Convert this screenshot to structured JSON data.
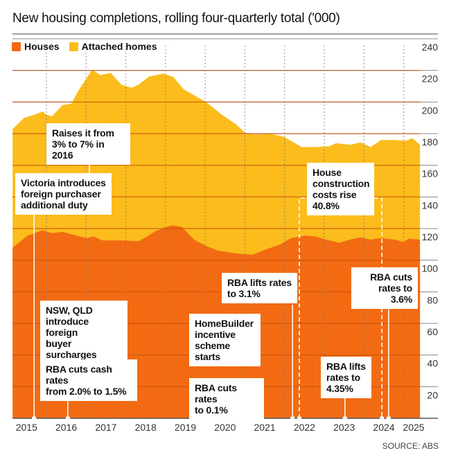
{
  "chart_data": {
    "type": "area",
    "stacked": true,
    "title": "New housing completions, rolling four-quarterly total ('000)",
    "xlabel": "",
    "ylabel": "",
    "ylim": [
      0,
      240
    ],
    "yticks": [
      20,
      40,
      60,
      80,
      100,
      120,
      140,
      160,
      180,
      200,
      220,
      240
    ],
    "xlim": [
      2014.65,
      2025.25
    ],
    "xtick_labels": [
      "2015",
      "2016",
      "2017",
      "2018",
      "2019",
      "2020",
      "2021",
      "2022",
      "2023",
      "2024",
      "2025"
    ],
    "grid": true,
    "legend_position": "top-left",
    "series": [
      {
        "name": "Houses",
        "color": "#F26B13",
        "x": [
          2014.65,
          2015.03,
          2015.41,
          2015.64,
          2015.9,
          2016.25,
          2016.51,
          2016.69,
          2016.91,
          2017.39,
          2017.82,
          2018.0,
          2018.26,
          2018.66,
          2018.91,
          2019.22,
          2019.52,
          2019.83,
          2020.35,
          2020.7,
          2021.05,
          2021.4,
          2021.66,
          2022.01,
          2022.28,
          2022.54,
          2022.88,
          2023.15,
          2023.41,
          2023.67,
          2023.93,
          2024.28,
          2024.49,
          2024.63,
          2024.91
        ],
        "values": [
          108,
          115.5,
          119,
          117,
          118,
          115.5,
          114,
          115,
          112.5,
          112.5,
          112,
          114.5,
          118.5,
          122,
          121,
          113,
          109,
          106,
          104,
          103.5,
          107,
          110,
          114,
          115.5,
          115,
          113,
          111,
          113,
          114.5,
          113,
          114,
          113,
          111.5,
          113.5,
          113
        ]
      },
      {
        "name": "Attached homes",
        "color": "#FBBC1C",
        "total_x": [
          2014.65,
          2014.94,
          2015.2,
          2015.41,
          2015.5,
          2015.64,
          2015.9,
          2016.13,
          2016.3,
          2016.51,
          2016.65,
          2016.86,
          2017.12,
          2017.39,
          2017.65,
          2017.82,
          2018.08,
          2018.43,
          2018.69,
          2018.96,
          2019.31,
          2019.52,
          2019.92,
          2020.27,
          2020.53,
          2020.79,
          2021.14,
          2021.49,
          2021.93,
          2022.28,
          2022.63,
          2022.8,
          2023.15,
          2023.41,
          2023.67,
          2023.93,
          2024.28,
          2024.55,
          2024.72,
          2024.91
        ],
        "total_values": [
          183,
          190,
          192,
          194,
          192,
          191,
          198,
          199,
          207,
          215,
          220.5,
          217,
          218.4,
          211,
          209,
          211,
          216,
          218,
          216,
          208,
          203,
          200,
          192,
          186,
          180,
          179.5,
          180,
          178,
          171.5,
          171.5,
          172,
          174,
          173,
          174.5,
          171.5,
          176,
          176,
          175.5,
          177,
          173
        ]
      }
    ],
    "annotations": [
      {
        "id": "victoria",
        "lines": [
          [
            "Victoria introduces"
          ],
          [
            "foreign purchaser"
          ],
          [
            "additional duty"
          ]
        ],
        "x": 2015.19
      },
      {
        "id": "raises",
        "lines": [
          [
            "Raises it from"
          ],
          [
            "3% to 7% in 2016"
          ]
        ]
      },
      {
        "id": "nswqld",
        "lines": [
          [
            "NSW, QLD"
          ],
          [
            "introduce foreign"
          ],
          [
            "buyer surcharges"
          ]
        ]
      },
      {
        "id": "rba15",
        "lines": [
          [
            "RBA cuts cash rates"
          ],
          [
            "from ",
            "2.0% to 1.5%"
          ]
        ],
        "x": 2016.04
      },
      {
        "id": "homebuilder",
        "lines": [
          [
            "HomeBuilder"
          ],
          [
            "incentive"
          ],
          [
            "scheme starts"
          ]
        ]
      },
      {
        "id": "rba01",
        "lines": [
          [
            "RBA cuts rates"
          ],
          [
            "to 0.1%"
          ]
        ],
        "x": 2020.04
      },
      {
        "id": "rba31",
        "lines": [
          [
            "RBA lifts rates"
          ],
          [
            "to 3.1%"
          ]
        ],
        "x": 2021.7
      },
      {
        "id": "construction",
        "lines": [
          [
            "House"
          ],
          [
            "construction"
          ],
          [
            "costs ",
            "rise"
          ],
          [
            "40.8%"
          ]
        ],
        "x_start": 2021.87,
        "x_end": 2023.95
      },
      {
        "id": "rba435",
        "lines": [
          [
            "RBA lifts"
          ],
          [
            "rates to"
          ],
          [
            "4.35%"
          ]
        ],
        "x": 2023.02
      },
      {
        "id": "rba36",
        "lines": [
          [
            "RBA cuts"
          ],
          [
            "rates to 3.6%"
          ]
        ],
        "x": 2024.12
      }
    ]
  },
  "title": "New housing completions, rolling four-quarterly total ('000)",
  "legend": {
    "houses": "Houses",
    "attached": "Attached homes",
    "houses_color": "#F26B13",
    "attached_color": "#FBBC1C"
  },
  "annotations_text": {
    "victoria": [
      "Victoria introduces",
      "foreign purchaser",
      "additional duty"
    ],
    "raises": [
      "Raises it from",
      "3% to 7% in 2016"
    ],
    "nswqld": [
      "NSW, QLD",
      "introduce foreign",
      "buyer surcharges"
    ],
    "rba15_a": "RBA cuts cash rates",
    "rba15_b1": "from ",
    "rba15_b2": "2.0% to 1.5%",
    "homebuilder": [
      "HomeBuilder",
      "incentive",
      "scheme starts"
    ],
    "rba01": [
      "RBA cuts rates",
      "to 0.1%"
    ],
    "rba31": [
      "RBA lifts rates",
      "to 3.1%"
    ],
    "construction": [
      "House",
      "construction",
      "costs ",
      "rise",
      "40.8%"
    ],
    "rba435": [
      "RBA lifts",
      "rates to",
      "4.35%"
    ],
    "rba36": [
      "RBA cuts",
      "rates to 3.6%"
    ]
  },
  "source": "SOURCE: ABS"
}
